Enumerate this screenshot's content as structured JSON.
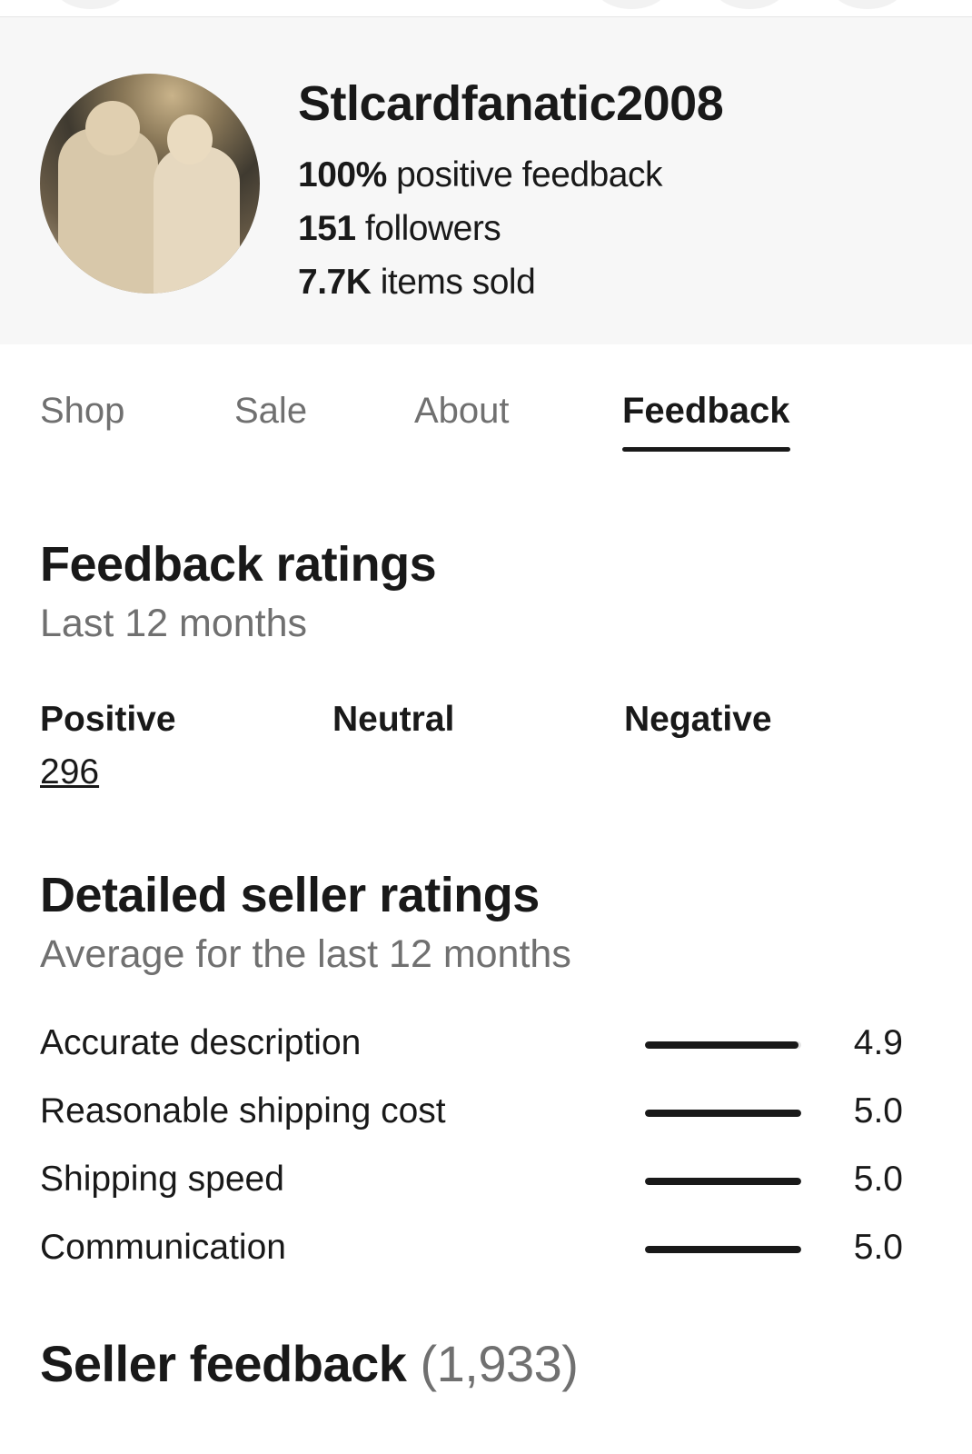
{
  "seller": {
    "name": "Stlcardfanatic2008",
    "positive_pct": "100%",
    "positive_label": "positive feedback",
    "followers_count": "151",
    "followers_label": "followers",
    "sold_count": "7.7K",
    "sold_label": "items sold"
  },
  "tabs": [
    {
      "label": "Shop",
      "active": false
    },
    {
      "label": "Sale",
      "active": false
    },
    {
      "label": "About",
      "active": false
    },
    {
      "label": "Feedback",
      "active": true
    }
  ],
  "feedback_ratings": {
    "title": "Feedback ratings",
    "subtitle": "Last 12 months",
    "positive_label": "Positive",
    "positive_value": "296",
    "neutral_label": "Neutral",
    "negative_label": "Negative"
  },
  "detailed": {
    "title": "Detailed seller ratings",
    "subtitle": "Average for the last 12 months",
    "max": 5,
    "items": [
      {
        "label": "Accurate description",
        "value": "4.9"
      },
      {
        "label": "Reasonable shipping cost",
        "value": "5.0"
      },
      {
        "label": "Shipping speed",
        "value": "5.0"
      },
      {
        "label": "Communication",
        "value": "5.0"
      }
    ]
  },
  "seller_feedback": {
    "title": "Seller feedback",
    "count": "(1,933)"
  }
}
